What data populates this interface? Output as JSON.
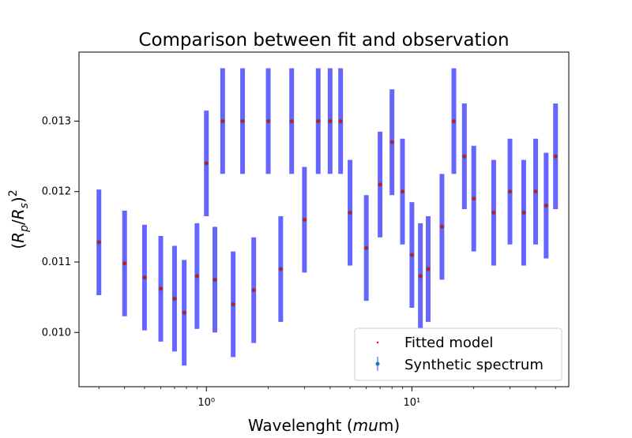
{
  "chart_data": {
    "type": "scatter",
    "title": "Comparison between fit and observation",
    "xlabel": "Wavelenght (mum)",
    "ylabel": "(Rp/Rs)²",
    "xscale": "log",
    "xlim": [
      0.24,
      58
    ],
    "ylim": [
      0.00923,
      0.01398
    ],
    "x_ticks": [
      {
        "value": 1,
        "label": "10⁰"
      },
      {
        "value": 10,
        "label": "10¹"
      }
    ],
    "y_ticks": [
      {
        "value": 0.01,
        "label": "0.010"
      },
      {
        "value": 0.011,
        "label": "0.011"
      },
      {
        "value": 0.012,
        "label": "0.012"
      },
      {
        "value": 0.013,
        "label": "0.013"
      }
    ],
    "grid": false,
    "legend": "lower-right",
    "series": [
      {
        "name": "Fitted model",
        "marker": "point",
        "color": "#ff0000",
        "x": [
          0.3,
          0.4,
          0.5,
          0.6,
          0.7,
          0.78,
          0.9,
          1.0,
          1.1,
          1.2,
          1.35,
          1.5,
          1.7,
          2.0,
          2.3,
          2.6,
          3.0,
          3.5,
          4.0,
          4.5,
          5.0,
          6.0,
          7.0,
          8.0,
          9.0,
          10.0,
          11.0,
          12.0,
          14.0,
          16.0,
          18.0,
          20.0,
          25.0,
          30.0,
          35.0,
          40.0,
          45.0,
          50.0
        ],
        "y": [
          0.01128,
          0.01098,
          0.01078,
          0.01062,
          0.01048,
          0.01028,
          0.0108,
          0.0124,
          0.01075,
          0.013,
          0.0104,
          0.013,
          0.0106,
          0.013,
          0.0109,
          0.013,
          0.0116,
          0.013,
          0.013,
          0.013,
          0.0117,
          0.0112,
          0.0121,
          0.0127,
          0.012,
          0.0111,
          0.0108,
          0.0109,
          0.0115,
          0.013,
          0.0125,
          0.0119,
          0.0117,
          0.012,
          0.0117,
          0.012,
          0.0118,
          0.0125
        ]
      },
      {
        "name": "Synthetic spectrum",
        "marker": "errorbar",
        "color": "#1f77b4",
        "errorbar_color": "#0000ff",
        "x": [
          0.3,
          0.4,
          0.5,
          0.6,
          0.7,
          0.78,
          0.9,
          1.0,
          1.1,
          1.2,
          1.35,
          1.5,
          1.7,
          2.0,
          2.3,
          2.6,
          3.0,
          3.5,
          4.0,
          4.5,
          5.0,
          6.0,
          7.0,
          8.0,
          9.0,
          10.0,
          11.0,
          12.0,
          14.0,
          16.0,
          18.0,
          20.0,
          25.0,
          30.0,
          35.0,
          40.0,
          45.0,
          50.0
        ],
        "y": [
          0.01128,
          0.01098,
          0.01078,
          0.01062,
          0.01048,
          0.01028,
          0.0108,
          0.0124,
          0.01075,
          0.013,
          0.0104,
          0.013,
          0.0106,
          0.013,
          0.0109,
          0.013,
          0.0116,
          0.013,
          0.013,
          0.013,
          0.0117,
          0.0112,
          0.0121,
          0.0127,
          0.012,
          0.0111,
          0.0108,
          0.0109,
          0.0115,
          0.013,
          0.0125,
          0.0119,
          0.0117,
          0.012,
          0.0117,
          0.012,
          0.0118,
          0.0125
        ],
        "yerr": 0.00075
      }
    ]
  }
}
